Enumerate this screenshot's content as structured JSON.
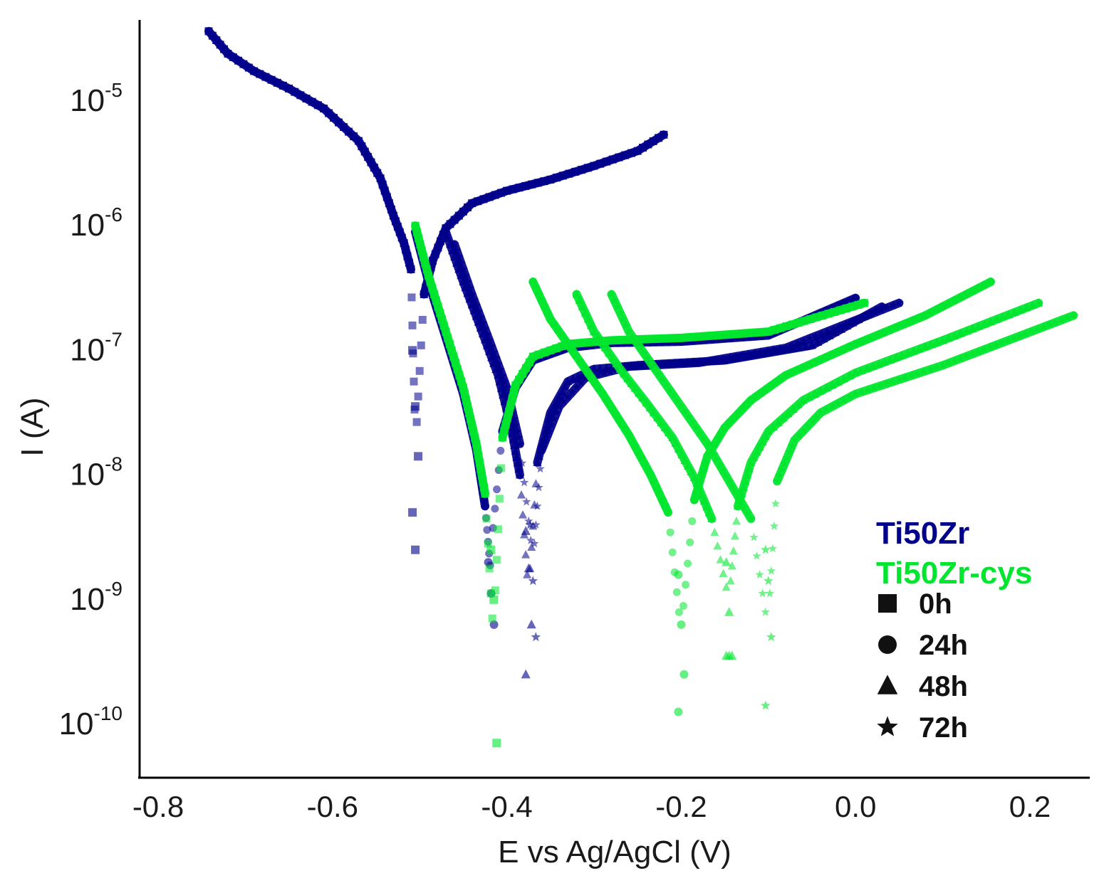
{
  "chart_data": {
    "type": "scatter",
    "title": "",
    "xlabel": "E vs Ag/AgCl (V)",
    "ylabel": "I (A)",
    "xlim": [
      -0.81,
      0.3
    ],
    "ylim_log10": [
      -10.4,
      -4.55
    ],
    "y_scale": "log",
    "x_ticks": [
      "-0.8",
      "-0.6",
      "-0.4",
      "-0.2",
      "0.0",
      "0.2"
    ],
    "x_tick_values": [
      -0.8,
      -0.6,
      -0.4,
      -0.2,
      0.0,
      0.2
    ],
    "y_ticks": [
      {
        "base": "10",
        "exp": "-5",
        "value_log10": -5
      },
      {
        "base": "10",
        "exp": "-6",
        "value_log10": -6
      },
      {
        "base": "10",
        "exp": "-7",
        "value_log10": -7
      },
      {
        "base": "10",
        "exp": "-8",
        "value_log10": -8
      },
      {
        "base": "10",
        "exp": "-9",
        "value_log10": -9
      },
      {
        "base": "10",
        "exp": "-10",
        "value_log10": -10
      }
    ],
    "legend": {
      "position": "bottom-right",
      "groups": [
        {
          "label": "Ti50Zr",
          "color": "#00008b"
        },
        {
          "label": "Ti50Zr-cys",
          "color": "#00e62e"
        }
      ],
      "markers": [
        {
          "symbol": "■",
          "shape": "square",
          "label": "0h"
        },
        {
          "symbol": "●",
          "shape": "circle",
          "label": "24h"
        },
        {
          "symbol": "▲",
          "shape": "triangle",
          "label": "48h"
        },
        {
          "symbol": "★",
          "shape": "star",
          "label": "72h"
        }
      ]
    },
    "series": [
      {
        "name": "Ti50Zr 0h",
        "group": "Ti50Zr",
        "marker": "square",
        "color": "#00008b",
        "ecorr": -0.505,
        "start": -0.742,
        "end": -0.22,
        "cathodic": [
          [
            -0.742,
            -4.44
          ],
          [
            -0.72,
            -4.62
          ],
          [
            -0.69,
            -4.76
          ],
          [
            -0.65,
            -4.9
          ],
          [
            -0.61,
            -5.06
          ],
          [
            -0.57,
            -5.32
          ],
          [
            -0.545,
            -5.62
          ],
          [
            -0.53,
            -5.92
          ],
          [
            -0.518,
            -6.14
          ],
          [
            -0.51,
            -6.35
          ]
        ],
        "anodic": [
          [
            -0.495,
            -6.55
          ],
          [
            -0.485,
            -6.28
          ],
          [
            -0.47,
            -6.02
          ],
          [
            -0.44,
            -5.82
          ],
          [
            -0.4,
            -5.72
          ],
          [
            -0.35,
            -5.63
          ],
          [
            -0.3,
            -5.52
          ],
          [
            -0.25,
            -5.4
          ],
          [
            -0.22,
            -5.27
          ]
        ],
        "dip_points": [
          -7.0,
          -7.45,
          -7.85,
          -8.3,
          -8.6
        ],
        "dip_floor": -8.6
      },
      {
        "name": "Ti50Zr 24h",
        "group": "Ti50Zr",
        "marker": "circle",
        "color": "#00008b",
        "ecorr": -0.418,
        "start": -0.505,
        "end": 0.0,
        "cathodic": [
          [
            -0.505,
            -6.05
          ],
          [
            -0.49,
            -6.45
          ],
          [
            -0.47,
            -6.9
          ],
          [
            -0.45,
            -7.35
          ],
          [
            -0.435,
            -7.8
          ],
          [
            -0.425,
            -8.25
          ]
        ],
        "anodic": [
          [
            -0.405,
            -7.65
          ],
          [
            -0.39,
            -7.3
          ],
          [
            -0.37,
            -7.08
          ],
          [
            -0.33,
            -6.98
          ],
          [
            -0.28,
            -6.94
          ],
          [
            -0.2,
            -6.93
          ],
          [
            -0.1,
            -6.88
          ],
          [
            0.0,
            -6.58
          ]
        ],
        "dip_points": [
          -8.7,
          -8.95,
          -9.2
        ],
        "dip_floor": -9.2
      },
      {
        "name": "Ti50Zr 48h",
        "group": "Ti50Zr",
        "marker": "triangle",
        "color": "#00008b",
        "ecorr": -0.375,
        "start": -0.47,
        "end": 0.03,
        "cathodic": [
          [
            -0.47,
            -6.05
          ],
          [
            -0.45,
            -6.45
          ],
          [
            -0.43,
            -6.82
          ],
          [
            -0.41,
            -7.2
          ],
          [
            -0.395,
            -7.62
          ],
          [
            -0.385,
            -8.0
          ]
        ],
        "anodic": [
          [
            -0.365,
            -7.9
          ],
          [
            -0.35,
            -7.5
          ],
          [
            -0.33,
            -7.25
          ],
          [
            -0.3,
            -7.15
          ],
          [
            -0.25,
            -7.12
          ],
          [
            -0.15,
            -7.08
          ],
          [
            -0.05,
            -6.96
          ],
          [
            0.03,
            -6.65
          ]
        ],
        "dip_points": [
          -8.45,
          -8.75,
          -9.2,
          -9.6
        ],
        "dip_floor": -9.6
      },
      {
        "name": "Ti50Zr 72h",
        "group": "Ti50Zr",
        "marker": "star",
        "color": "#00008b",
        "ecorr": -0.37,
        "start": -0.46,
        "end": 0.05,
        "cathodic": [
          [
            -0.46,
            -6.15
          ],
          [
            -0.44,
            -6.55
          ],
          [
            -0.42,
            -6.92
          ],
          [
            -0.4,
            -7.3
          ],
          [
            -0.385,
            -7.75
          ]
        ],
        "anodic": [
          [
            -0.36,
            -7.8
          ],
          [
            -0.34,
            -7.45
          ],
          [
            -0.31,
            -7.22
          ],
          [
            -0.26,
            -7.13
          ],
          [
            -0.18,
            -7.1
          ],
          [
            -0.08,
            -6.98
          ],
          [
            0.05,
            -6.62
          ]
        ],
        "dip_points": [
          -8.4,
          -8.85,
          -9.3
        ],
        "dip_floor": -9.3
      },
      {
        "name": "Ti50Zr-cys 0h",
        "group": "Ti50Zr-cys",
        "marker": "square",
        "color": "#00e62e",
        "ecorr": -0.415,
        "start": -0.505,
        "end": 0.01,
        "cathodic": [
          [
            -0.505,
            -6.0
          ],
          [
            -0.49,
            -6.4
          ],
          [
            -0.47,
            -6.85
          ],
          [
            -0.45,
            -7.3
          ],
          [
            -0.435,
            -7.75
          ],
          [
            -0.425,
            -8.15
          ]
        ],
        "anodic": [
          [
            -0.405,
            -7.7
          ],
          [
            -0.39,
            -7.28
          ],
          [
            -0.37,
            -7.05
          ],
          [
            -0.33,
            -6.95
          ],
          [
            -0.28,
            -6.92
          ],
          [
            -0.2,
            -6.9
          ],
          [
            -0.1,
            -6.85
          ],
          [
            0.01,
            -6.62
          ]
        ],
        "dip_points": [
          -8.6,
          -9.0,
          -10.15
        ],
        "dip_floor": -10.15
      },
      {
        "name": "Ti50Zr-cys 24h",
        "group": "Ti50Zr-cys",
        "marker": "circle",
        "color": "#00e62e",
        "ecorr": -0.2,
        "start": -0.37,
        "end": 0.155,
        "cathodic": [
          [
            -0.37,
            -6.45
          ],
          [
            -0.35,
            -6.75
          ],
          [
            -0.32,
            -7.05
          ],
          [
            -0.29,
            -7.35
          ],
          [
            -0.26,
            -7.68
          ],
          [
            -0.235,
            -8.0
          ],
          [
            -0.215,
            -8.3
          ]
        ],
        "anodic": [
          [
            -0.185,
            -8.2
          ],
          [
            -0.17,
            -7.85
          ],
          [
            -0.15,
            -7.62
          ],
          [
            -0.12,
            -7.4
          ],
          [
            -0.08,
            -7.2
          ],
          [
            0.0,
            -6.95
          ],
          [
            0.08,
            -6.72
          ],
          [
            0.155,
            -6.45
          ]
        ],
        "dip_points": [
          -8.8,
          -9.2,
          -9.6,
          -9.9
        ],
        "dip_floor": -9.9
      },
      {
        "name": "Ti50Zr-cys 48h",
        "group": "Ti50Zr-cys",
        "marker": "triangle",
        "color": "#00e62e",
        "ecorr": -0.145,
        "start": -0.32,
        "end": 0.21,
        "cathodic": [
          [
            -0.32,
            -6.55
          ],
          [
            -0.3,
            -6.85
          ],
          [
            -0.27,
            -7.15
          ],
          [
            -0.24,
            -7.42
          ],
          [
            -0.21,
            -7.7
          ],
          [
            -0.185,
            -8.02
          ],
          [
            -0.165,
            -8.35
          ]
        ],
        "anodic": [
          [
            -0.135,
            -8.25
          ],
          [
            -0.12,
            -7.9
          ],
          [
            -0.1,
            -7.65
          ],
          [
            -0.06,
            -7.4
          ],
          [
            0.0,
            -7.18
          ],
          [
            0.1,
            -6.92
          ],
          [
            0.21,
            -6.62
          ]
        ],
        "dip_points": [
          -8.7,
          -9.1,
          -9.45,
          -9.45,
          -9.45
        ],
        "dip_floor": -9.45
      },
      {
        "name": "Ti50Zr-cys 72h",
        "group": "Ti50Zr-cys",
        "marker": "star",
        "color": "#00e62e",
        "ecorr": -0.1,
        "start": -0.28,
        "end": 0.25,
        "cathodic": [
          [
            -0.28,
            -6.55
          ],
          [
            -0.26,
            -6.85
          ],
          [
            -0.23,
            -7.15
          ],
          [
            -0.2,
            -7.45
          ],
          [
            -0.17,
            -7.75
          ],
          [
            -0.145,
            -8.05
          ],
          [
            -0.12,
            -8.35
          ]
        ],
        "anodic": [
          [
            -0.09,
            -8.05
          ],
          [
            -0.07,
            -7.72
          ],
          [
            -0.04,
            -7.5
          ],
          [
            0.0,
            -7.35
          ],
          [
            0.1,
            -7.12
          ],
          [
            0.25,
            -6.72
          ]
        ],
        "dip_points": [
          -8.6,
          -8.85,
          -9.3,
          -9.85
        ],
        "dip_floor": -9.85
      }
    ]
  }
}
